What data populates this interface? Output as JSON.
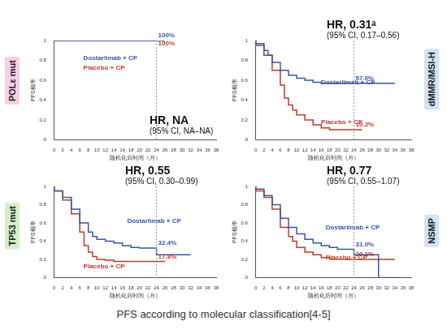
{
  "caption": "PFS according to molecular classification[4-5]",
  "chart_data": [
    {
      "type": "line",
      "title": "POLε mut",
      "hr": "HR, NA",
      "ci": "(95% CI, NA–NA)",
      "xlabel": "随机化后时间（月）",
      "ylabel": "PFS概率",
      "xlim": [
        0,
        38
      ],
      "xticks": [
        0,
        2,
        4,
        6,
        8,
        10,
        12,
        14,
        16,
        18,
        20,
        22,
        24,
        26,
        28,
        30,
        32,
        34,
        36,
        38
      ],
      "ylim": [
        0,
        1.0
      ],
      "yticks": [
        0,
        0.2,
        0.4,
        0.6,
        0.8,
        1.0
      ],
      "grid": false,
      "series": [
        {
          "name": "Dostarlimab + CP",
          "color": "#3557a6",
          "line_style": "step",
          "x": [
            0,
            26
          ],
          "values": [
            1.0,
            1.0
          ],
          "landmark": {
            "x": 24,
            "value": 1.0,
            "label": "100%"
          }
        },
        {
          "name": "Placebo + CP",
          "color": "#c0392b",
          "line_style": "step",
          "x": [
            0,
            24
          ],
          "values": [
            1.0,
            1.0
          ],
          "landmark": {
            "x": 24,
            "value": 1.0,
            "label": "100%"
          }
        }
      ]
    },
    {
      "type": "line",
      "title": "dMMR/MSI-H",
      "hr": "HR, 0.31ᵃ",
      "ci": "(95% CI, 0.17–0.56)",
      "xlabel": "随机化后时间（月）",
      "ylabel": "PFS概率",
      "xlim": [
        0,
        38
      ],
      "xticks": [
        0,
        2,
        4,
        6,
        8,
        10,
        12,
        14,
        16,
        18,
        20,
        22,
        24,
        26,
        28,
        30,
        32,
        34,
        36,
        38
      ],
      "ylim": [
        0,
        1.0
      ],
      "yticks": [
        0,
        0.2,
        0.4,
        0.6,
        0.8,
        1.0
      ],
      "grid": false,
      "series": [
        {
          "name": "Dostarlimab + CP",
          "color": "#3557a6",
          "line_style": "step",
          "x": [
            0,
            2,
            3,
            4,
            6,
            8,
            10,
            12,
            14,
            16,
            20,
            34
          ],
          "values": [
            1.0,
            0.97,
            0.9,
            0.85,
            0.78,
            0.7,
            0.65,
            0.62,
            0.6,
            0.58,
            0.57,
            0.57
          ],
          "landmark": {
            "x": 24,
            "value": 0.57,
            "label": "57.0%"
          }
        },
        {
          "name": "Placebo + CP",
          "color": "#c0392b",
          "line_style": "step",
          "x": [
            0,
            2,
            4,
            6,
            7,
            8,
            9,
            10,
            12,
            14,
            16,
            18,
            20,
            26
          ],
          "values": [
            1.0,
            0.95,
            0.85,
            0.7,
            0.55,
            0.42,
            0.35,
            0.3,
            0.25,
            0.2,
            0.15,
            0.12,
            0.102,
            0.102
          ],
          "landmark": {
            "x": 24,
            "value": 0.102,
            "label": "10.2%"
          }
        }
      ]
    },
    {
      "type": "line",
      "title": "TP53 mut",
      "hr": "HR, 0.55",
      "ci": "(95% CI, 0.30–0.99)",
      "xlabel": "随机化后时间（月）",
      "ylabel": "PFS概率",
      "xlim": [
        0,
        38
      ],
      "xticks": [
        0,
        2,
        4,
        6,
        8,
        10,
        12,
        14,
        16,
        18,
        20,
        22,
        24,
        26,
        28,
        30,
        32,
        34,
        36,
        38
      ],
      "ylim": [
        0,
        1.0
      ],
      "yticks": [
        0,
        0.2,
        0.4,
        0.6,
        0.8,
        1.0
      ],
      "grid": false,
      "series": [
        {
          "name": "Dostarlimab + CP",
          "color": "#3557a6",
          "line_style": "step",
          "x": [
            0,
            2,
            4,
            6,
            8,
            9,
            10,
            12,
            14,
            16,
            18,
            20,
            24,
            28,
            32
          ],
          "values": [
            1.0,
            0.95,
            0.88,
            0.75,
            0.6,
            0.5,
            0.45,
            0.42,
            0.4,
            0.38,
            0.35,
            0.33,
            0.324,
            0.25,
            0.25
          ],
          "landmark": {
            "x": 24,
            "value": 0.324,
            "label": "32.4%"
          }
        },
        {
          "name": "Placebo + CP",
          "color": "#c0392b",
          "line_style": "step",
          "x": [
            0,
            2,
            4,
            6,
            7,
            8,
            9,
            10,
            12,
            14,
            18,
            26
          ],
          "values": [
            1.0,
            0.95,
            0.85,
            0.7,
            0.5,
            0.35,
            0.28,
            0.23,
            0.2,
            0.19,
            0.178,
            0.178
          ],
          "landmark": {
            "x": 24,
            "value": 0.178,
            "label": "17.8%"
          }
        }
      ]
    },
    {
      "type": "line",
      "title": "NSMP",
      "hr": "HR, 0.77",
      "ci": "(95% CI, 0.55–1.07)",
      "xlabel": "随机化后时间（月）",
      "ylabel": "PFS概率",
      "xlim": [
        0,
        38
      ],
      "xticks": [
        0,
        2,
        4,
        6,
        8,
        10,
        12,
        14,
        16,
        18,
        20,
        22,
        24,
        26,
        28,
        30,
        32,
        34,
        36,
        38
      ],
      "ylim": [
        0,
        1.0
      ],
      "yticks": [
        0,
        0.2,
        0.4,
        0.6,
        0.8,
        1.0
      ],
      "grid": false,
      "series": [
        {
          "name": "Dostarlimab + CP",
          "color": "#3557a6",
          "line_style": "step",
          "x": [
            0,
            2,
            4,
            6,
            8,
            10,
            12,
            14,
            16,
            18,
            20,
            24,
            30,
            35
          ],
          "values": [
            1.0,
            0.97,
            0.9,
            0.8,
            0.65,
            0.55,
            0.48,
            0.42,
            0.38,
            0.35,
            0.33,
            0.31,
            0.25,
            0.0
          ],
          "landmark": {
            "x": 24,
            "value": 0.31,
            "label": "31.0%"
          }
        },
        {
          "name": "Placebo + CP",
          "color": "#c0392b",
          "line_style": "step",
          "x": [
            0,
            2,
            4,
            6,
            8,
            9,
            10,
            12,
            14,
            16,
            18,
            22,
            30,
            34
          ],
          "values": [
            1.0,
            0.95,
            0.88,
            0.75,
            0.55,
            0.45,
            0.4,
            0.33,
            0.28,
            0.25,
            0.22,
            0.201,
            0.2,
            0.2
          ],
          "landmark": {
            "x": 24,
            "value": 0.201,
            "label": "20.1%"
          }
        }
      ]
    }
  ]
}
